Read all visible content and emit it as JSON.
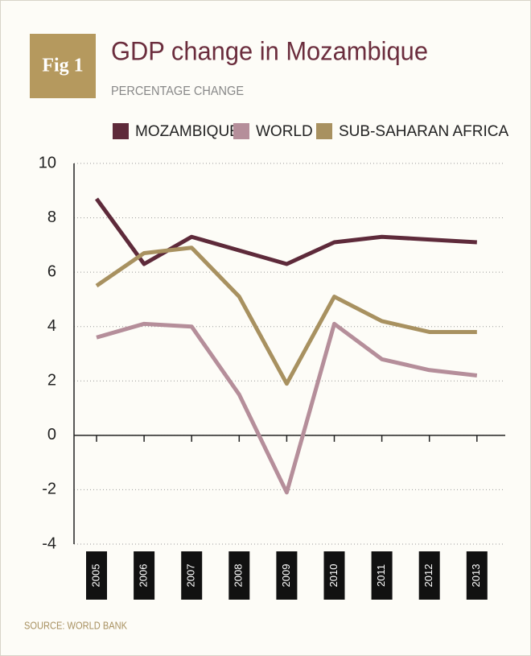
{
  "figure_label": "Fig 1",
  "chart_data": {
    "type": "line",
    "title": "GDP change in Mozambique",
    "subtitle": "PERCENTAGE CHANGE",
    "categories": [
      "2005",
      "2006",
      "2007",
      "2008",
      "2009",
      "2010",
      "2011",
      "2012",
      "2013"
    ],
    "series": [
      {
        "name": "MOZAMBIQUE",
        "color": "#5e2a3a",
        "values": [
          8.7,
          6.3,
          7.3,
          6.8,
          6.3,
          7.1,
          7.3,
          7.2,
          7.1
        ]
      },
      {
        "name": "WORLD",
        "color": "#b58e9a",
        "values": [
          3.6,
          4.1,
          4.0,
          1.5,
          -2.1,
          4.1,
          2.8,
          2.4,
          2.2
        ]
      },
      {
        "name": "SUB-SAHARAN AFRICA",
        "color": "#a89160",
        "values": [
          5.5,
          6.7,
          6.9,
          5.1,
          1.9,
          5.1,
          4.2,
          3.8,
          3.8
        ]
      }
    ],
    "ylim": [
      -4,
      10
    ],
    "yticks": [
      -4,
      -2,
      0,
      2,
      4,
      6,
      8,
      10
    ],
    "grid": true,
    "source": "SOURCE: WORLD BANK"
  }
}
